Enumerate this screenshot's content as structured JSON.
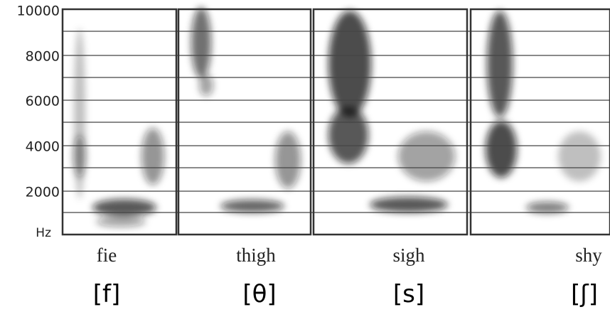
{
  "axis": {
    "ticks": [
      "10000",
      "8000",
      "6000",
      "4000",
      "2000"
    ],
    "unit": "Hz"
  },
  "panels": [
    {
      "word": "fie",
      "ipa": "[f]"
    },
    {
      "word": "thigh",
      "ipa": "[θ]"
    },
    {
      "word": "sigh",
      "ipa": "[s]"
    },
    {
      "word": "shy",
      "ipa": "[ʃ]"
    }
  ]
}
